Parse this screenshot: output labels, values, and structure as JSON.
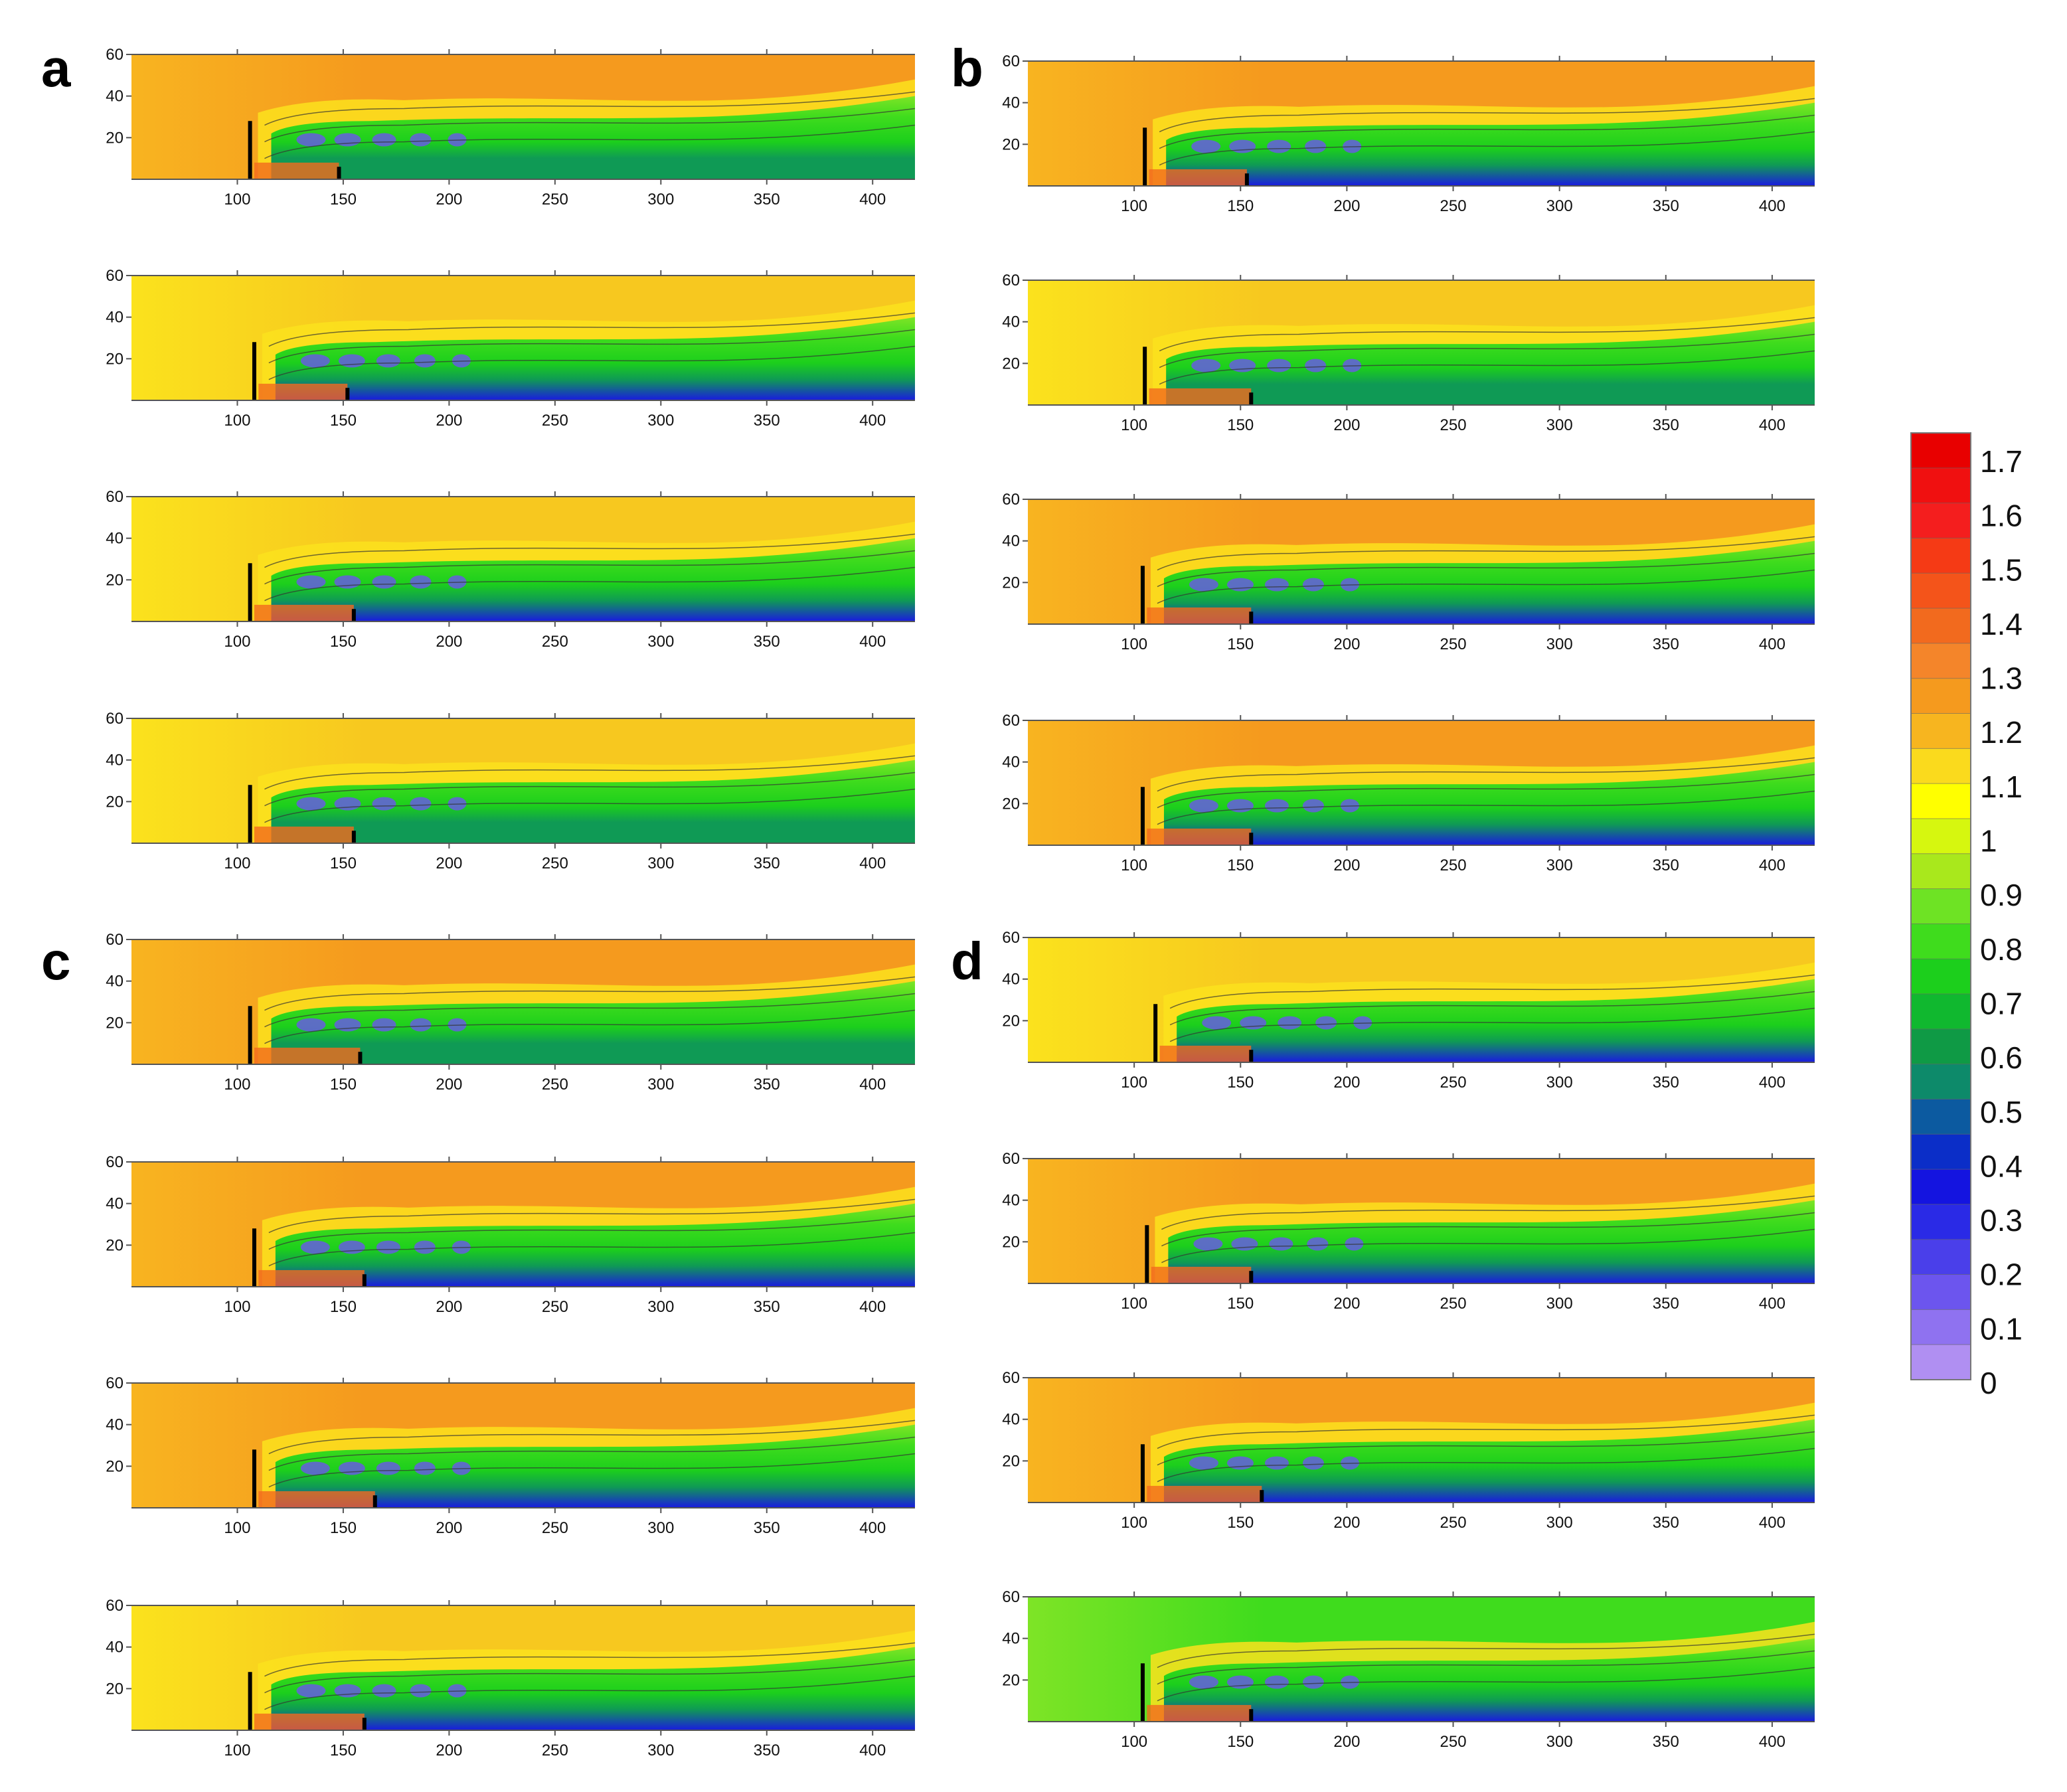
{
  "colorbar": {
    "labels": [
      "1.7",
      "1.6",
      "1.5",
      "1.4",
      "1.3",
      "1.2",
      "1.1",
      "1",
      "0.9",
      "0.8",
      "0.7",
      "0.6",
      "0.5",
      "0.4",
      "0.3",
      "0.2",
      "0.1",
      "0"
    ],
    "colors": [
      "#e80000",
      "#f01010",
      "#f41e1e",
      "#f53a15",
      "#f4541a",
      "#f26a1e",
      "#f4852a",
      "#f59a1e",
      "#f7b51f",
      "#fada1d",
      "#ffff00",
      "#d6f70f",
      "#a9e81c",
      "#6ee324",
      "#3fdc1d",
      "#1ccf1c",
      "#10b82f",
      "#0f9a45",
      "#0d8a6a",
      "#0c5aa0",
      "#0b2ec8",
      "#1414e0",
      "#2a2ae6",
      "#4a3fea",
      "#6c55ee",
      "#8f72f0",
      "#b08ff2"
    ],
    "levels": 18
  },
  "chart_data": {
    "type": "heatmap",
    "description_values": "velocity ratio contour maps",
    "x_ticks": [
      "100",
      "150",
      "200",
      "250",
      "300",
      "350",
      "400"
    ],
    "y_ticks": [
      "60",
      "40",
      "20"
    ],
    "xlim": [
      50,
      420
    ],
    "ylim": [
      0,
      60
    ],
    "panels": [
      {
        "letter": "a",
        "subplots": [
          {
            "row": 1,
            "wake_len": 0.95,
            "core": 0.45,
            "bg": "orange",
            "obstacle_x": 106,
            "obstacle2_x": 148
          },
          {
            "row": 2,
            "wake_len": 1.0,
            "core": 0.3,
            "bg": "yellow",
            "obstacle_x": 108,
            "obstacle2_x": 152
          },
          {
            "row": 3,
            "wake_len": 1.0,
            "core": 0.3,
            "bg": "yellow",
            "obstacle_x": 106,
            "obstacle2_x": 155
          },
          {
            "row": 4,
            "wake_len": 1.0,
            "core": 0.55,
            "bg": "yellow",
            "obstacle_x": 106,
            "obstacle2_x": 155
          }
        ]
      },
      {
        "letter": "b",
        "subplots": [
          {
            "row": 1,
            "wake_len": 1.0,
            "core": 0.3,
            "bg": "orange",
            "obstacle_x": 105,
            "obstacle2_x": 153
          },
          {
            "row": 2,
            "wake_len": 1.0,
            "core": 0.55,
            "bg": "yellow",
            "obstacle_x": 105,
            "obstacle2_x": 155
          },
          {
            "row": 3,
            "wake_len": 1.0,
            "core": 0.3,
            "bg": "orange",
            "obstacle_x": 104,
            "obstacle2_x": 155
          },
          {
            "row": 4,
            "wake_len": 1.0,
            "core": 0.3,
            "bg": "orange",
            "obstacle_x": 104,
            "obstacle2_x": 155
          }
        ]
      },
      {
        "letter": "c",
        "subplots": [
          {
            "row": 1,
            "wake_len": 1.0,
            "core": 0.55,
            "bg": "orange",
            "obstacle_x": 106,
            "obstacle2_x": 158
          },
          {
            "row": 2,
            "wake_len": 1.0,
            "core": 0.3,
            "bg": "orange",
            "obstacle_x": 108,
            "obstacle2_x": 160
          },
          {
            "row": 3,
            "wake_len": 1.0,
            "core": 0.3,
            "bg": "orange",
            "obstacle_x": 108,
            "obstacle2_x": 165
          },
          {
            "row": 4,
            "wake_len": 1.0,
            "core": 0.3,
            "bg": "yellow",
            "obstacle_x": 106,
            "obstacle2_x": 160
          }
        ]
      },
      {
        "letter": "d",
        "subplots": [
          {
            "row": 1,
            "wake_len": 1.0,
            "core": 0.3,
            "bg": "yellow",
            "obstacle_x": 110,
            "obstacle2_x": 155
          },
          {
            "row": 2,
            "wake_len": 1.0,
            "core": 0.3,
            "bg": "orange",
            "obstacle_x": 106,
            "obstacle2_x": 155
          },
          {
            "row": 3,
            "wake_len": 1.0,
            "core": 0.3,
            "bg": "orange",
            "obstacle_x": 104,
            "obstacle2_x": 160
          },
          {
            "row": 4,
            "wake_len": 1.0,
            "core": 0.3,
            "bg": "green",
            "obstacle_x": 104,
            "obstacle2_x": 155
          }
        ]
      }
    ]
  }
}
